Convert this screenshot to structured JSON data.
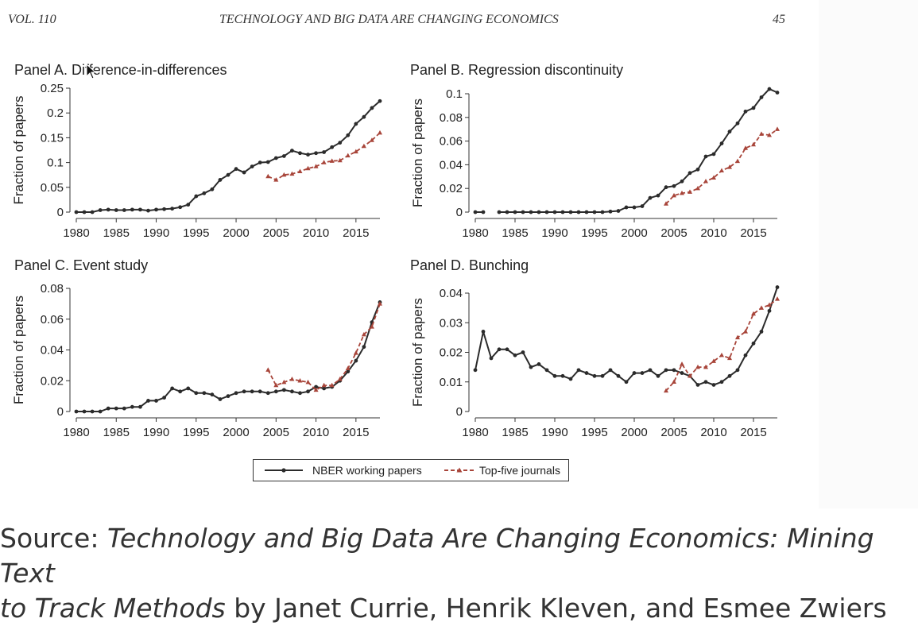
{
  "running_head": {
    "volume": "VOL. 110",
    "title": "TECHNOLOGY AND BIG DATA ARE CHANGING ECONOMICS",
    "page": "45"
  },
  "colors": {
    "nber": "#2b2b2b",
    "top5": "#a8453a"
  },
  "chart_data": [
    {
      "type": "line",
      "title": "Panel A. Difference-in-differences",
      "ylabel": "Fraction of papers",
      "xlabel": "",
      "xlim": [
        1980,
        2018
      ],
      "ylim": [
        0,
        0.25
      ],
      "xticks": [
        "1980",
        "1985",
        "1990",
        "1995",
        "2000",
        "2005",
        "2010",
        "2015"
      ],
      "yticks": [
        "0",
        "0.05",
        "0.1",
        "0.15",
        "0.2",
        "0.25"
      ],
      "series": [
        {
          "name": "NBER working papers",
          "x": [
            1980,
            1981,
            1982,
            1983,
            1984,
            1985,
            1986,
            1987,
            1988,
            1989,
            1990,
            1991,
            1992,
            1993,
            1994,
            1995,
            1996,
            1997,
            1998,
            1999,
            2000,
            2001,
            2002,
            2003,
            2004,
            2005,
            2006,
            2007,
            2008,
            2009,
            2010,
            2011,
            2012,
            2013,
            2014,
            2015,
            2016,
            2017,
            2018
          ],
          "y": [
            0,
            0,
            0,
            0.004,
            0.005,
            0.004,
            0.004,
            0.005,
            0.005,
            0.003,
            0.005,
            0.006,
            0.007,
            0.01,
            0.015,
            0.032,
            0.038,
            0.046,
            0.065,
            0.075,
            0.087,
            0.08,
            0.092,
            0.1,
            0.101,
            0.109,
            0.113,
            0.124,
            0.119,
            0.116,
            0.119,
            0.121,
            0.131,
            0.14,
            0.155,
            0.178,
            0.192,
            0.21,
            0.224
          ]
        },
        {
          "name": "Top-five journals",
          "x": [
            2004,
            2005,
            2006,
            2007,
            2008,
            2009,
            2010,
            2011,
            2012,
            2013,
            2014,
            2015,
            2016,
            2017,
            2018
          ],
          "y": [
            0.072,
            0.065,
            0.075,
            0.077,
            0.082,
            0.088,
            0.092,
            0.1,
            0.103,
            0.104,
            0.114,
            0.122,
            0.133,
            0.145,
            0.16
          ]
        }
      ]
    },
    {
      "type": "line",
      "title": "Panel B. Regression discontinuity",
      "ylabel": "Fraction of papers",
      "xlabel": "",
      "xlim": [
        1980,
        2018
      ],
      "ylim": [
        0,
        0.1
      ],
      "xticks": [
        "1980",
        "1985",
        "1990",
        "1995",
        "2000",
        "2005",
        "2010",
        "2015"
      ],
      "yticks": [
        "0",
        "0.02",
        "0.04",
        "0.06",
        "0.08",
        "0.1"
      ],
      "series": [
        {
          "name": "NBER working papers",
          "x": [
            1980,
            1981,
            1982,
            1983,
            1984,
            1985,
            1986,
            1987,
            1988,
            1989,
            1990,
            1991,
            1992,
            1993,
            1994,
            1995,
            1996,
            1997,
            1998,
            1999,
            2000,
            2001,
            2002,
            2003,
            2004,
            2005,
            2006,
            2007,
            2008,
            2009,
            2010,
            2011,
            2012,
            2013,
            2014,
            2015,
            2016,
            2017,
            2018
          ],
          "y": [
            0,
            0,
            null,
            0,
            0,
            0,
            0,
            0,
            0,
            0,
            0,
            0,
            0,
            0,
            0,
            0,
            0,
            0.0005,
            0.001,
            0.004,
            0.004,
            0.005,
            0.012,
            0.014,
            0.021,
            0.022,
            0.026,
            0.033,
            0.036,
            0.047,
            0.049,
            0.058,
            0.068,
            0.075,
            0.085,
            0.088,
            0.097,
            0.104,
            0.101
          ]
        },
        {
          "name": "Top-five journals",
          "x": [
            2004,
            2005,
            2006,
            2007,
            2008,
            2009,
            2010,
            2011,
            2012,
            2013,
            2014,
            2015,
            2016,
            2017,
            2018
          ],
          "y": [
            0.007,
            0.014,
            0.016,
            0.017,
            0.02,
            0.026,
            0.029,
            0.035,
            0.038,
            0.043,
            0.054,
            0.057,
            0.066,
            0.065,
            0.07
          ]
        }
      ]
    },
    {
      "type": "line",
      "title": "Panel C. Event study",
      "ylabel": "Fraction of papers",
      "xlabel": "",
      "xlim": [
        1980,
        2018
      ],
      "ylim": [
        0,
        0.08
      ],
      "xticks": [
        "1980",
        "1985",
        "1990",
        "1995",
        "2000",
        "2005",
        "2010",
        "2015"
      ],
      "yticks": [
        "0",
        "0.02",
        "0.04",
        "0.06",
        "0.08"
      ],
      "series": [
        {
          "name": "NBER working papers",
          "x": [
            1980,
            1981,
            1982,
            1983,
            1984,
            1985,
            1986,
            1987,
            1988,
            1989,
            1990,
            1991,
            1992,
            1993,
            1994,
            1995,
            1996,
            1997,
            1998,
            1999,
            2000,
            2001,
            2002,
            2003,
            2004,
            2005,
            2006,
            2007,
            2008,
            2009,
            2010,
            2011,
            2012,
            2013,
            2014,
            2015,
            2016,
            2017,
            2018
          ],
          "y": [
            0,
            0,
            0,
            0,
            0.002,
            0.002,
            0.002,
            0.003,
            0.003,
            0.007,
            0.007,
            0.009,
            0.015,
            0.013,
            0.015,
            0.012,
            0.012,
            0.011,
            0.008,
            0.01,
            0.012,
            0.013,
            0.013,
            0.013,
            0.012,
            0.013,
            0.014,
            0.013,
            0.012,
            0.013,
            0.016,
            0.015,
            0.016,
            0.02,
            0.026,
            0.033,
            0.042,
            0.058,
            0.071
          ]
        },
        {
          "name": "Top-five journals",
          "x": [
            2004,
            2005,
            2006,
            2007,
            2008,
            2009,
            2010,
            2011,
            2012,
            2013,
            2014,
            2015,
            2016,
            2017,
            2018
          ],
          "y": [
            0.027,
            0.017,
            0.019,
            0.021,
            0.02,
            0.019,
            0.014,
            0.017,
            0.017,
            0.021,
            0.028,
            0.038,
            0.05,
            0.055,
            0.07
          ]
        }
      ]
    },
    {
      "type": "line",
      "title": "Panel D. Bunching",
      "ylabel": "Fraction of papers",
      "xlabel": "",
      "xlim": [
        1980,
        2018
      ],
      "ylim": [
        0,
        0.04
      ],
      "xticks": [
        "1980",
        "1985",
        "1990",
        "1995",
        "2000",
        "2005",
        "2010",
        "2015"
      ],
      "yticks": [
        "0",
        "0.01",
        "0.02",
        "0.03",
        "0.04"
      ],
      "series": [
        {
          "name": "NBER working papers",
          "x": [
            1980,
            1981,
            1982,
            1983,
            1984,
            1985,
            1986,
            1987,
            1988,
            1989,
            1990,
            1991,
            1992,
            1993,
            1994,
            1995,
            1996,
            1997,
            1998,
            1999,
            2000,
            2001,
            2002,
            2003,
            2004,
            2005,
            2006,
            2007,
            2008,
            2009,
            2010,
            2011,
            2012,
            2013,
            2014,
            2015,
            2016,
            2017,
            2018
          ],
          "y": [
            0.014,
            0.027,
            0.018,
            0.021,
            0.021,
            0.019,
            0.02,
            0.015,
            0.016,
            0.014,
            0.012,
            0.012,
            0.011,
            0.014,
            0.013,
            0.012,
            0.012,
            0.014,
            0.012,
            0.01,
            0.013,
            0.013,
            0.014,
            0.012,
            0.014,
            0.014,
            0.013,
            0.012,
            0.009,
            0.01,
            0.009,
            0.01,
            0.012,
            0.014,
            0.019,
            0.023,
            0.027,
            0.034,
            0.042
          ]
        },
        {
          "name": "Top-five journals",
          "x": [
            2004,
            2005,
            2006,
            2007,
            2008,
            2009,
            2010,
            2011,
            2012,
            2013,
            2014,
            2015,
            2016,
            2017,
            2018
          ],
          "y": [
            0.007,
            0.01,
            0.016,
            0.012,
            0.015,
            0.015,
            0.017,
            0.019,
            0.018,
            0.025,
            0.027,
            0.033,
            0.035,
            0.036,
            0.038
          ]
        }
      ]
    }
  ],
  "legend": {
    "nber_label": "NBER working papers",
    "top5_label": "Top-five journals"
  },
  "source": {
    "prefix": "Source: ",
    "title_line1": "Technology and Big Data Are Changing Economics: Mining Text",
    "title_line2": "to Track Methods",
    "suffix": " by Janet Currie, Henrik Kleven, and Esmee Zwiers"
  }
}
